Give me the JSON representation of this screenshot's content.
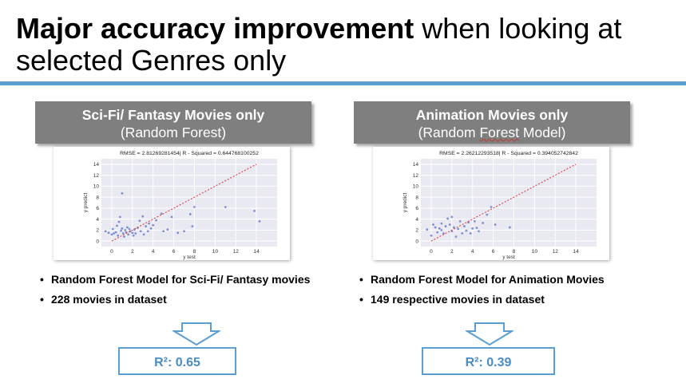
{
  "slide": {
    "title_bold": "Major accuracy improvement",
    "title_rest": " when looking at selected Genres only"
  },
  "panels": [
    {
      "header_line1": "Sci-Fi/ Fantasy Movies only",
      "header_line2": "(Random Forest)",
      "bullets": [
        "Random Forest Model for Sci-Fi/ Fantasy movies",
        "228 movies in dataset"
      ],
      "result": "R²: 0.65"
    },
    {
      "header_line1": "Animation Movies only",
      "header_line2_pre": "(Random ",
      "header_line2_wavy": "Forest",
      "header_line2_post": " Model)",
      "bullets": [
        "Random Forest Model for Animation Movies",
        "149 respective movies in dataset"
      ],
      "result": "R²: 0.39"
    }
  ],
  "chart_data": [
    {
      "type": "scatter",
      "title": "RMSE = 2.81269281454| R - Squared = 0.644768100252",
      "xlabel": "y test",
      "ylabel": "y predict",
      "xlim": [
        -1,
        16
      ],
      "ylim": [
        -1,
        15
      ],
      "xticks": [
        0,
        2,
        4,
        6,
        8,
        10,
        12,
        14
      ],
      "yticks": [
        0,
        2,
        4,
        6,
        8,
        10,
        12,
        14
      ],
      "grid": true,
      "colors": {
        "points": "#6b7fd0",
        "reference_line": "#e03030",
        "background": "#e9e9f2"
      },
      "reference_line": {
        "x": [
          0,
          14
        ],
        "y": [
          0,
          14
        ]
      },
      "points": [
        [
          -0.6,
          1.8
        ],
        [
          -0.3,
          1.5
        ],
        [
          0.0,
          1.2
        ],
        [
          0.1,
          2.2
        ],
        [
          0.2,
          1.4
        ],
        [
          0.4,
          1.6
        ],
        [
          0.5,
          2.8
        ],
        [
          0.6,
          1.0
        ],
        [
          0.7,
          3.5
        ],
        [
          0.8,
          4.4
        ],
        [
          0.9,
          1.9
        ],
        [
          1.0,
          8.7
        ],
        [
          1.0,
          2.3
        ],
        [
          1.1,
          1.4
        ],
        [
          1.2,
          0.8
        ],
        [
          1.3,
          2.0
        ],
        [
          1.4,
          1.6
        ],
        [
          1.5,
          2.5
        ],
        [
          1.6,
          1.2
        ],
        [
          1.7,
          2.2
        ],
        [
          1.8,
          1.8
        ],
        [
          2.0,
          1.5
        ],
        [
          2.1,
          1.0
        ],
        [
          2.2,
          2.1
        ],
        [
          2.3,
          1.4
        ],
        [
          2.5,
          2.4
        ],
        [
          2.7,
          3.7
        ],
        [
          2.8,
          1.8
        ],
        [
          3.0,
          4.5
        ],
        [
          3.1,
          1.2
        ],
        [
          3.3,
          2.7
        ],
        [
          3.5,
          1.8
        ],
        [
          3.6,
          3.2
        ],
        [
          3.8,
          2.3
        ],
        [
          4.0,
          2.9
        ],
        [
          4.3,
          3.8
        ],
        [
          4.8,
          5.0
        ],
        [
          5.0,
          1.8
        ],
        [
          5.4,
          2.1
        ],
        [
          5.8,
          4.4
        ],
        [
          6.4,
          1.5
        ],
        [
          7.0,
          1.8
        ],
        [
          7.6,
          4.9
        ],
        [
          7.8,
          2.7
        ],
        [
          8.0,
          6.2
        ],
        [
          11.0,
          6.2
        ],
        [
          13.8,
          5.5
        ],
        [
          14.3,
          3.6
        ]
      ]
    },
    {
      "type": "scatter",
      "title": "RMSE = 2.26212293518| R - Squared = 0.394052742842",
      "xlabel": "y test",
      "ylabel": "y predict",
      "xlim": [
        -1,
        16
      ],
      "ylim": [
        -1,
        15
      ],
      "xticks": [
        0,
        2,
        4,
        6,
        8,
        10,
        12,
        14
      ],
      "yticks": [
        0,
        2,
        4,
        6,
        8,
        10,
        12,
        14
      ],
      "grid": true,
      "colors": {
        "points": "#6b7fd0",
        "reference_line": "#e03030",
        "background": "#e9e9f2"
      },
      "reference_line": {
        "x": [
          0,
          14
        ],
        "y": [
          0,
          14
        ]
      },
      "points": [
        [
          -0.4,
          2.1
        ],
        [
          0.0,
          1.0
        ],
        [
          0.2,
          3.0
        ],
        [
          0.4,
          2.5
        ],
        [
          0.6,
          1.6
        ],
        [
          0.8,
          2.3
        ],
        [
          1.0,
          3.2
        ],
        [
          1.0,
          2.0
        ],
        [
          1.2,
          1.4
        ],
        [
          1.4,
          2.7
        ],
        [
          1.6,
          4.1
        ],
        [
          1.8,
          3.0
        ],
        [
          2.0,
          4.4
        ],
        [
          2.0,
          1.8
        ],
        [
          2.2,
          2.5
        ],
        [
          2.4,
          0.8
        ],
        [
          2.6,
          2.2
        ],
        [
          2.8,
          3.6
        ],
        [
          3.0,
          1.4
        ],
        [
          3.2,
          2.7
        ],
        [
          3.4,
          1.9
        ],
        [
          3.6,
          3.4
        ],
        [
          3.8,
          1.4
        ],
        [
          4.0,
          2.3
        ],
        [
          4.2,
          3.6
        ],
        [
          4.4,
          2.4
        ],
        [
          4.6,
          1.8
        ],
        [
          5.0,
          3.3
        ],
        [
          5.4,
          4.8
        ],
        [
          5.8,
          6.2
        ],
        [
          6.2,
          3.0
        ],
        [
          7.6,
          2.5
        ]
      ]
    }
  ]
}
